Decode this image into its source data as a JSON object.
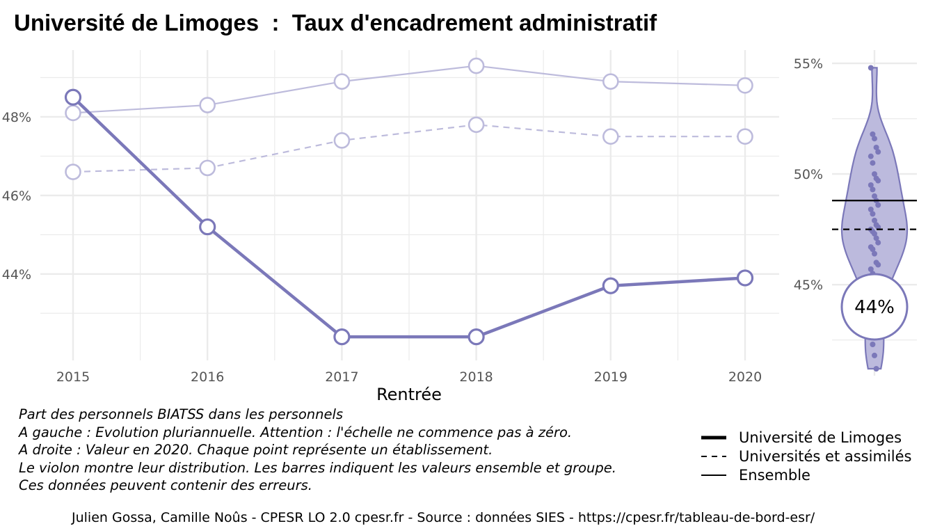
{
  "title": "Université de Limoges  :  Taux d'encadrement administratif",
  "chart_data": [
    {
      "type": "line",
      "xlabel": "Rentrée",
      "ylabel": "",
      "x": [
        "2015",
        "2016",
        "2017",
        "2018",
        "2019",
        "2020"
      ],
      "ylim": [
        41.8,
        49.7
      ],
      "y_ticks": [
        44,
        46,
        48
      ],
      "y_tick_labels": [
        "44%",
        "46%",
        "48%"
      ],
      "grid": true,
      "series": [
        {
          "name": "Université de Limoges",
          "style": "thick",
          "values": [
            48.5,
            45.2,
            42.4,
            42.4,
            43.7,
            43.9
          ]
        },
        {
          "name": "Universités et assimilés",
          "style": "dashed",
          "values": [
            46.6,
            46.7,
            47.4,
            47.8,
            47.5,
            47.5
          ]
        },
        {
          "name": "Ensemble",
          "style": "thin",
          "values": [
            48.1,
            48.3,
            48.9,
            49.3,
            48.9,
            48.8
          ]
        }
      ]
    },
    {
      "type": "scatter",
      "subtype": "violin",
      "ylim": [
        41.2,
        55.6
      ],
      "y_ticks": [
        45,
        50,
        55
      ],
      "y_tick_labels": [
        "45%",
        "50%",
        "55%"
      ],
      "highlight_value": 44,
      "highlight_label": "44%",
      "reference_lines": {
        "Ensemble": 48.8,
        "Universités et assimilés": 47.5
      },
      "points": [
        54.8,
        51.8,
        51.6,
        51.2,
        51.0,
        50.8,
        50.5,
        50.0,
        49.8,
        49.7,
        49.5,
        49.3,
        49.0,
        48.8,
        48.6,
        48.4,
        48.2,
        47.9,
        47.7,
        47.6,
        47.5,
        47.4,
        47.3,
        47.1,
        46.9,
        46.7,
        46.6,
        46.4,
        46.0,
        45.9,
        45.7,
        45.5,
        44.9,
        44.5,
        43.6,
        42.8,
        42.3,
        41.8,
        41.2
      ]
    }
  ],
  "caption": [
    "Part des personnels BIATSS dans les personnels",
    "A gauche : Evolution pluriannuelle. Attention : l'échelle ne commence pas à zéro.",
    "A droite : Valeur en 2020. Chaque point représente un établissement.",
    "Le violon montre leur distribution. Les barres indiquent les valeurs ensemble et groupe.",
    "Ces données peuvent contenir des erreurs."
  ],
  "legend": [
    {
      "label": "Université de Limoges",
      "style": "thick"
    },
    {
      "label": "Universités et assimilés",
      "style": "dashed"
    },
    {
      "label": "Ensemble",
      "style": "thin"
    }
  ],
  "source": "Julien Gossa, Camille Noûs - CPESR LO 2.0 cpesr.fr - Source : données SIES - https://cpesr.fr/tableau-de-bord-esr/",
  "colors": {
    "main": "#7b78b9",
    "light": "#bdbbdc",
    "violin_fill": "#bcbadd",
    "grid": "#ebebeb",
    "ref_line": "#000000"
  }
}
